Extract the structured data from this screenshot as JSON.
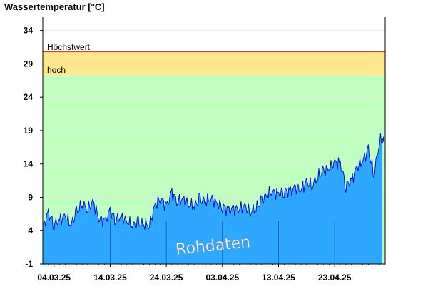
{
  "chart_data": {
    "type": "area",
    "ylabel": "Wassertemperatur [°C]",
    "ylim": [
      -1,
      36
    ],
    "yticks": [
      -1,
      4,
      9,
      14,
      19,
      24,
      29,
      34
    ],
    "x_start": "2025-03-02",
    "x_end": "2025-05-02",
    "x_ticks": [
      {
        "date": "2025-03-04",
        "label": "04.03.25"
      },
      {
        "date": "2025-03-14",
        "label": "14.03.25"
      },
      {
        "date": "2025-03-24",
        "label": "24.03.25"
      },
      {
        "date": "2025-04-03",
        "label": "03.04.25"
      },
      {
        "date": "2025-04-13",
        "label": "13.04.25"
      },
      {
        "date": "2025-04-23",
        "label": "23.04.25"
      }
    ],
    "bands": [
      {
        "label": "hoch",
        "from": -1,
        "to": 27.3,
        "color": "#c0ffc0"
      },
      {
        "label": "hoch",
        "from": 27.3,
        "to": 30.8,
        "color": "#ffe88c"
      },
      {
        "label": "Höchstwert",
        "at": 30.8,
        "color": "#b03030"
      }
    ],
    "watermark": "Rohdaten",
    "area_color": "#2ea8ff",
    "line_color": "#0000d0",
    "series": [
      {
        "values": [
          {
            "x": "2025-03-02",
            "y": 4.6
          },
          {
            "x": "2025-03-03",
            "y": 6.6
          },
          {
            "x": "2025-03-04",
            "y": 5.0
          },
          {
            "x": "2025-03-05",
            "y": 5.6
          },
          {
            "x": "2025-03-06",
            "y": 6.2
          },
          {
            "x": "2025-03-07",
            "y": 4.9
          },
          {
            "x": "2025-03-08",
            "y": 6.7
          },
          {
            "x": "2025-03-09",
            "y": 8.0
          },
          {
            "x": "2025-03-10",
            "y": 7.4
          },
          {
            "x": "2025-03-11",
            "y": 8.2
          },
          {
            "x": "2025-03-12",
            "y": 5.9
          },
          {
            "x": "2025-03-13",
            "y": 5.4
          },
          {
            "x": "2025-03-14",
            "y": 6.8
          },
          {
            "x": "2025-03-15",
            "y": 5.8
          },
          {
            "x": "2025-03-16",
            "y": 6.0
          },
          {
            "x": "2025-03-17",
            "y": 5.4
          },
          {
            "x": "2025-03-18",
            "y": 4.8
          },
          {
            "x": "2025-03-19",
            "y": 5.1
          },
          {
            "x": "2025-03-20",
            "y": 5.0
          },
          {
            "x": "2025-03-21",
            "y": 4.9
          },
          {
            "x": "2025-03-22",
            "y": 7.8
          },
          {
            "x": "2025-03-23",
            "y": 8.9
          },
          {
            "x": "2025-03-24",
            "y": 7.6
          },
          {
            "x": "2025-03-25",
            "y": 9.6
          },
          {
            "x": "2025-03-26",
            "y": 8.5
          },
          {
            "x": "2025-03-27",
            "y": 8.7
          },
          {
            "x": "2025-03-28",
            "y": 8.0
          },
          {
            "x": "2025-03-29",
            "y": 7.8
          },
          {
            "x": "2025-03-30",
            "y": 8.6
          },
          {
            "x": "2025-03-31",
            "y": 8.4
          },
          {
            "x": "2025-04-01",
            "y": 8.9
          },
          {
            "x": "2025-04-02",
            "y": 8.0
          },
          {
            "x": "2025-04-03",
            "y": 7.8
          },
          {
            "x": "2025-04-04",
            "y": 7.0
          },
          {
            "x": "2025-04-05",
            "y": 7.2
          },
          {
            "x": "2025-04-06",
            "y": 7.4
          },
          {
            "x": "2025-04-07",
            "y": 7.6
          },
          {
            "x": "2025-04-08",
            "y": 6.8
          },
          {
            "x": "2025-04-09",
            "y": 7.5
          },
          {
            "x": "2025-04-10",
            "y": 8.3
          },
          {
            "x": "2025-04-11",
            "y": 9.6
          },
          {
            "x": "2025-04-12",
            "y": 9.8
          },
          {
            "x": "2025-04-13",
            "y": 9.5
          },
          {
            "x": "2025-04-14",
            "y": 10.0
          },
          {
            "x": "2025-04-15",
            "y": 9.8
          },
          {
            "x": "2025-04-16",
            "y": 10.4
          },
          {
            "x": "2025-04-17",
            "y": 10.2
          },
          {
            "x": "2025-04-18",
            "y": 11.2
          },
          {
            "x": "2025-04-19",
            "y": 10.8
          },
          {
            "x": "2025-04-20",
            "y": 12.2
          },
          {
            "x": "2025-04-21",
            "y": 12.8
          },
          {
            "x": "2025-04-22",
            "y": 13.4
          },
          {
            "x": "2025-04-23",
            "y": 14.2
          },
          {
            "x": "2025-04-24",
            "y": 14.1
          },
          {
            "x": "2025-04-25",
            "y": 10.8
          },
          {
            "x": "2025-04-26",
            "y": 11.5
          },
          {
            "x": "2025-04-27",
            "y": 13.5
          },
          {
            "x": "2025-04-28",
            "y": 14.5
          },
          {
            "x": "2025-04-29",
            "y": 16.0
          },
          {
            "x": "2025-04-30",
            "y": 12.5
          },
          {
            "x": "2025-05-01",
            "y": 17.5
          }
        ]
      }
    ]
  }
}
